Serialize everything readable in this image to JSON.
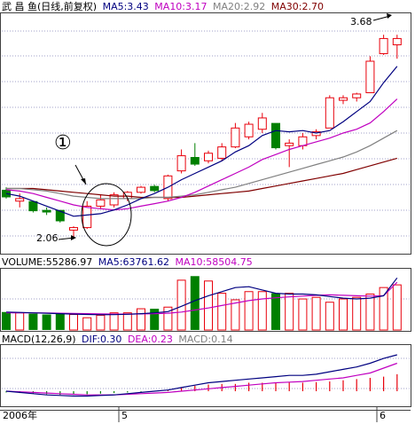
{
  "header": {
    "title": "武 昌 鱼(日线,前复权)",
    "ma5": "MA5:3.43",
    "ma10": "MA10:3.17",
    "ma20": "MA20:2.92",
    "ma30": "MA30:2.70"
  },
  "volume_header": {
    "volume": "VOLUME:55286.97",
    "ma5": "MA5:63761.62",
    "ma10": "MA10:58504.75"
  },
  "macd_header": {
    "params": "MACD(12,26,9)",
    "dif": "DIF:0.30",
    "dea": "DEA:0.23",
    "macd": "MACD:0.14"
  },
  "annotations": {
    "circle_marker": "①",
    "low_label": "2.06",
    "high_label": "3.68"
  },
  "x_axis": {
    "year": "2006年",
    "month5": "5",
    "month6": "6"
  },
  "colors": {
    "up": "#e8000b",
    "down": "#008000",
    "ma5": "#000080",
    "ma10": "#c000c0",
    "ma20": "#808080",
    "ma30": "#800000",
    "grid": "#a0a0c8"
  },
  "chart_data": [
    {
      "type": "candlestick",
      "title": "武 昌 鱼(日线,前复权)",
      "ylim": [
        1.95,
        3.85
      ],
      "grid": true,
      "candles": [
        {
          "o": 2.45,
          "h": 2.47,
          "l": 2.38,
          "c": 2.39
        },
        {
          "o": 2.36,
          "h": 2.42,
          "l": 2.31,
          "c": 2.38
        },
        {
          "o": 2.36,
          "h": 2.36,
          "l": 2.27,
          "c": 2.28
        },
        {
          "o": 2.29,
          "h": 2.31,
          "l": 2.25,
          "c": 2.27
        },
        {
          "o": 2.29,
          "h": 2.29,
          "l": 2.19,
          "c": 2.2
        },
        {
          "o": 2.13,
          "h": 2.16,
          "l": 2.06,
          "c": 2.15
        },
        {
          "o": 2.15,
          "h": 2.36,
          "l": 2.14,
          "c": 2.32
        },
        {
          "o": 2.32,
          "h": 2.41,
          "l": 2.3,
          "c": 2.37
        },
        {
          "o": 2.33,
          "h": 2.43,
          "l": 2.31,
          "c": 2.41
        },
        {
          "o": 2.38,
          "h": 2.44,
          "l": 2.36,
          "c": 2.43
        },
        {
          "o": 2.43,
          "h": 2.48,
          "l": 2.42,
          "c": 2.47
        },
        {
          "o": 2.48,
          "h": 2.49,
          "l": 2.43,
          "c": 2.44
        },
        {
          "o": 2.38,
          "h": 2.57,
          "l": 2.36,
          "c": 2.56
        },
        {
          "o": 2.6,
          "h": 2.77,
          "l": 2.58,
          "c": 2.72
        },
        {
          "o": 2.71,
          "h": 2.82,
          "l": 2.64,
          "c": 2.65
        },
        {
          "o": 2.68,
          "h": 2.76,
          "l": 2.66,
          "c": 2.74
        },
        {
          "o": 2.7,
          "h": 2.82,
          "l": 2.68,
          "c": 2.79
        },
        {
          "o": 2.79,
          "h": 2.98,
          "l": 2.78,
          "c": 2.94
        },
        {
          "o": 2.87,
          "h": 2.99,
          "l": 2.85,
          "c": 2.97
        },
        {
          "o": 2.93,
          "h": 3.06,
          "l": 2.9,
          "c": 3.02
        },
        {
          "o": 2.98,
          "h": 2.98,
          "l": 2.77,
          "c": 2.78
        },
        {
          "o": 2.8,
          "h": 2.85,
          "l": 2.63,
          "c": 2.82
        },
        {
          "o": 2.8,
          "h": 2.9,
          "l": 2.77,
          "c": 2.87
        },
        {
          "o": 2.88,
          "h": 2.93,
          "l": 2.85,
          "c": 2.91
        },
        {
          "o": 2.94,
          "h": 3.2,
          "l": 2.94,
          "c": 3.18
        },
        {
          "o": 3.16,
          "h": 3.2,
          "l": 3.13,
          "c": 3.18
        },
        {
          "o": 3.18,
          "h": 3.22,
          "l": 3.15,
          "c": 3.21
        },
        {
          "o": 3.22,
          "h": 3.51,
          "l": 3.22,
          "c": 3.47
        },
        {
          "o": 3.53,
          "h": 3.68,
          "l": 3.52,
          "c": 3.65
        },
        {
          "o": 3.6,
          "h": 3.68,
          "l": 3.49,
          "c": 3.65
        }
      ],
      "ma5": [
        2.42,
        2.4,
        2.36,
        2.32,
        2.28,
        2.24,
        2.25,
        2.26,
        2.29,
        2.33,
        2.38,
        2.42,
        2.47,
        2.53,
        2.58,
        2.63,
        2.68,
        2.75,
        2.8,
        2.88,
        2.92,
        2.91,
        2.92,
        2.9,
        2.92,
        2.99,
        3.07,
        3.15,
        3.3,
        3.43
      ],
      "ma10": [
        2.45,
        2.44,
        2.42,
        2.39,
        2.36,
        2.33,
        2.31,
        2.3,
        2.29,
        2.3,
        2.32,
        2.34,
        2.36,
        2.39,
        2.43,
        2.48,
        2.53,
        2.58,
        2.63,
        2.69,
        2.73,
        2.77,
        2.8,
        2.83,
        2.86,
        2.9,
        2.93,
        2.98,
        3.07,
        3.17
      ],
      "ma20": [
        2.46,
        2.46,
        2.45,
        2.44,
        2.42,
        2.4,
        2.39,
        2.38,
        2.38,
        2.38,
        2.38,
        2.39,
        2.39,
        2.4,
        2.41,
        2.43,
        2.45,
        2.47,
        2.5,
        2.53,
        2.56,
        2.59,
        2.62,
        2.65,
        2.68,
        2.71,
        2.75,
        2.8,
        2.86,
        2.92
      ],
      "ma30": [
        2.46,
        2.46,
        2.46,
        2.45,
        2.44,
        2.43,
        2.42,
        2.41,
        2.4,
        2.4,
        2.39,
        2.39,
        2.39,
        2.39,
        2.4,
        2.41,
        2.42,
        2.43,
        2.44,
        2.46,
        2.48,
        2.5,
        2.52,
        2.54,
        2.56,
        2.58,
        2.61,
        2.64,
        2.67,
        2.7
      ]
    },
    {
      "type": "bar",
      "title": "VOLUME",
      "ylim": [
        0,
        75000
      ],
      "grid": true,
      "values": [
        22000,
        21000,
        20000,
        19000,
        20000,
        19000,
        15000,
        18000,
        21000,
        21000,
        26000,
        26000,
        28000,
        61000,
        66000,
        60000,
        45000,
        37000,
        47000,
        47000,
        45000,
        45000,
        38000,
        40000,
        34000,
        38000,
        40000,
        44000,
        52000,
        55287
      ],
      "ma5": [
        22000,
        21500,
        21000,
        20500,
        20000,
        19500,
        19000,
        18700,
        18800,
        19200,
        20000,
        21000,
        22500,
        29000,
        36000,
        42000,
        47000,
        52000,
        53000,
        49000,
        45000,
        44000,
        44000,
        43000,
        41000,
        39000,
        38000,
        39000,
        42000,
        63762
      ],
      "ma10": [
        21000,
        21000,
        21000,
        20800,
        20500,
        20300,
        20000,
        19700,
        19500,
        19500,
        19700,
        20000,
        20500,
        22000,
        24500,
        27000,
        30000,
        33000,
        36000,
        38000,
        39500,
        40500,
        41500,
        42500,
        43000,
        42500,
        42000,
        41500,
        42000,
        58505
      ]
    },
    {
      "type": "bar",
      "title": "MACD(12,26,9)",
      "ylim": [
        -0.08,
        0.38
      ],
      "grid": true,
      "macd": [
        -0.01,
        -0.015,
        -0.02,
        -0.025,
        -0.03,
        -0.03,
        -0.025,
        -0.02,
        -0.015,
        -0.01,
        -0.005,
        0.0,
        0.01,
        0.03,
        0.045,
        0.055,
        0.06,
        0.06,
        0.07,
        0.07,
        0.07,
        0.075,
        0.07,
        0.075,
        0.08,
        0.09,
        0.1,
        0.11,
        0.12,
        0.14
      ],
      "dif": [
        0.0,
        -0.01,
        -0.02,
        -0.03,
        -0.035,
        -0.04,
        -0.04,
        -0.035,
        -0.03,
        -0.02,
        -0.01,
        0.0,
        0.01,
        0.03,
        0.05,
        0.07,
        0.08,
        0.09,
        0.1,
        0.11,
        0.12,
        0.13,
        0.13,
        0.14,
        0.16,
        0.18,
        0.2,
        0.23,
        0.27,
        0.3
      ],
      "dea": [
        0.0,
        -0.005,
        -0.01,
        -0.015,
        -0.02,
        -0.025,
        -0.03,
        -0.03,
        -0.03,
        -0.025,
        -0.02,
        -0.015,
        -0.01,
        0.0,
        0.01,
        0.02,
        0.03,
        0.04,
        0.05,
        0.06,
        0.07,
        0.075,
        0.08,
        0.09,
        0.1,
        0.11,
        0.13,
        0.15,
        0.19,
        0.23
      ]
    }
  ]
}
